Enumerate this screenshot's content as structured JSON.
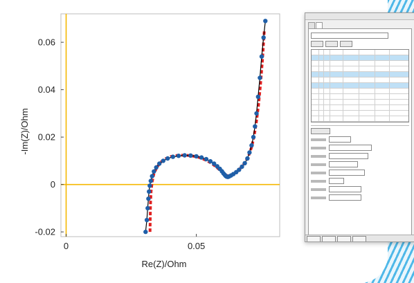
{
  "chart_data": {
    "type": "scatter",
    "xlabel": "Re(Z)/Ohm",
    "ylabel": "-Im(Z)/Ohm",
    "xlim": [
      -0.002,
      0.082
    ],
    "ylim": [
      -0.022,
      0.072
    ],
    "x_ticks": [
      {
        "value": 0,
        "label": "0"
      },
      {
        "value": 0.05,
        "label": "0.05"
      }
    ],
    "y_ticks": [
      {
        "value": -0.02,
        "label": "-0.02"
      },
      {
        "value": 0,
        "label": "0"
      },
      {
        "value": 0.02,
        "label": "0.02"
      },
      {
        "value": 0.04,
        "label": "0.04"
      },
      {
        "value": 0.06,
        "label": "0.06"
      }
    ],
    "grid": false,
    "axis_line_color": "#f5b700",
    "series": [
      {
        "kind": "measured",
        "color": "#1f5fa8",
        "line_color": "#000000",
        "x": [
          0.0305,
          0.031,
          0.0313,
          0.0316,
          0.0318,
          0.0321,
          0.0325,
          0.033,
          0.0337,
          0.0346,
          0.0358,
          0.0373,
          0.039,
          0.041,
          0.0432,
          0.0455,
          0.0478,
          0.05,
          0.052,
          0.0538,
          0.0554,
          0.0568,
          0.058,
          0.059,
          0.0598,
          0.0604,
          0.0609,
          0.0613,
          0.0617,
          0.0621,
          0.0626,
          0.0633,
          0.0642,
          0.0653,
          0.0664,
          0.0675,
          0.0686,
          0.0696,
          0.0704,
          0.0712,
          0.0719,
          0.0725,
          0.0731,
          0.0737,
          0.0744,
          0.0751,
          0.0758,
          0.0765
        ],
        "y": [
          -0.02,
          -0.015,
          -0.01,
          -0.006,
          -0.003,
          -0.0005,
          0.0015,
          0.0035,
          0.0055,
          0.0072,
          0.0088,
          0.01,
          0.011,
          0.0117,
          0.0121,
          0.0123,
          0.0122,
          0.0119,
          0.0114,
          0.0107,
          0.0098,
          0.0088,
          0.0077,
          0.0066,
          0.0056,
          0.0047,
          0.0041,
          0.0036,
          0.0033,
          0.0032,
          0.0034,
          0.0038,
          0.0044,
          0.0052,
          0.0062,
          0.0075,
          0.009,
          0.011,
          0.0135,
          0.0165,
          0.02,
          0.0245,
          0.03,
          0.037,
          0.045,
          0.054,
          0.062,
          0.069
        ]
      },
      {
        "kind": "fit",
        "color": "#e02020",
        "x": [
          0.0322,
          0.0323,
          0.0324,
          0.0326,
          0.033,
          0.0337,
          0.0348,
          0.0362,
          0.038,
          0.0402,
          0.0428,
          0.0455,
          0.0482,
          0.0508,
          0.0532,
          0.0553,
          0.0571,
          0.0586,
          0.0599,
          0.0609,
          0.0617,
          0.0625,
          0.0634,
          0.0646,
          0.066,
          0.0675,
          0.069,
          0.0702,
          0.0713,
          0.0722,
          0.073,
          0.0738,
          0.0746,
          0.0754,
          0.0761
        ],
        "y": [
          -0.02,
          -0.014,
          -0.008,
          -0.003,
          0.001,
          0.0045,
          0.0072,
          0.0093,
          0.0108,
          0.0118,
          0.0123,
          0.0124,
          0.0121,
          0.0115,
          0.0105,
          0.0093,
          0.0079,
          0.0065,
          0.0052,
          0.0043,
          0.0038,
          0.0036,
          0.0039,
          0.0046,
          0.0058,
          0.0075,
          0.0098,
          0.0125,
          0.016,
          0.0205,
          0.026,
          0.033,
          0.042,
          0.053,
          0.065
        ]
      }
    ]
  }
}
